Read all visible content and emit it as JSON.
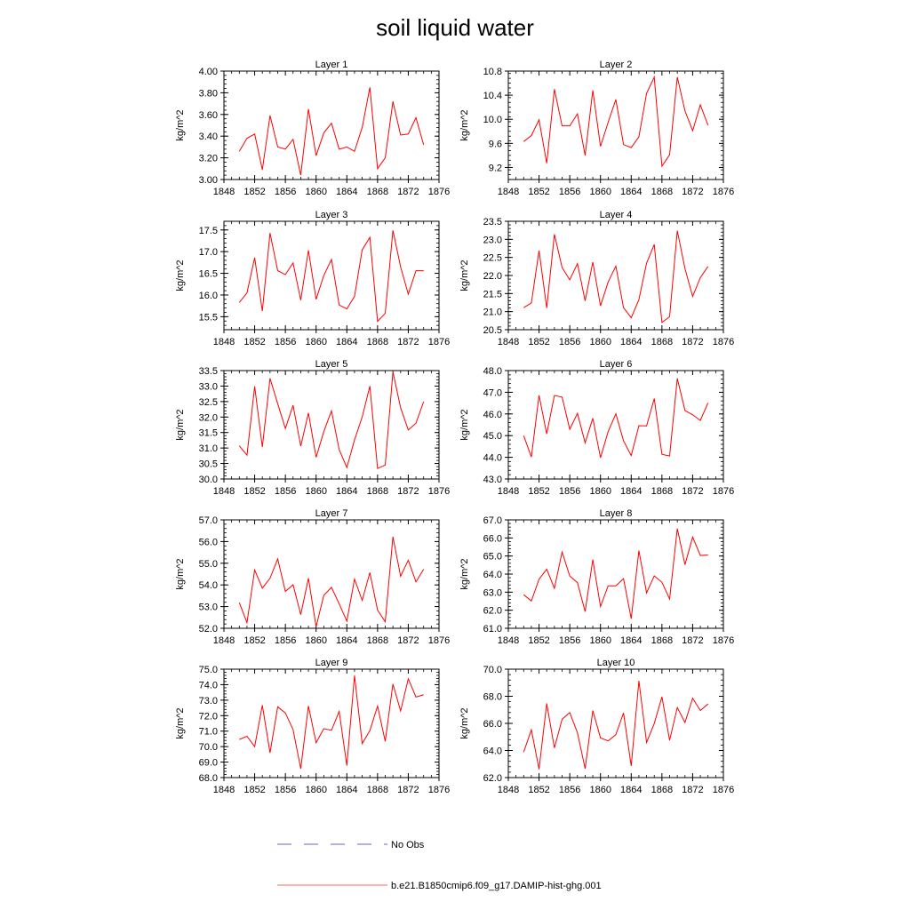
{
  "figure": {
    "title": "soil liquid water"
  },
  "legend": [
    {
      "label": "No Obs",
      "color": "#6666cc",
      "dash": true
    },
    {
      "label": "b.e21.B1850cmip6.f09_g17.DAMIP-hist-ghg.001",
      "color": "#ff0000",
      "dash": false
    }
  ],
  "chart_data": [
    {
      "type": "line",
      "title": "Layer 1",
      "xlabel": "",
      "ylabel": "kg/m^2",
      "xlim": [
        1848,
        1876
      ],
      "ylim": [
        3.0,
        4.0
      ],
      "xticks": [
        "1848",
        "1852",
        "1856",
        "1860",
        "1864",
        "1868",
        "1872",
        "1876"
      ],
      "yticks": [
        "3.00",
        "3.20",
        "3.40",
        "3.60",
        "3.80",
        "4.00"
      ],
      "series": [
        {
          "color": "#ff0000",
          "x": [
            1850,
            1851,
            1852,
            1853,
            1854,
            1855,
            1856,
            1857,
            1858,
            1859,
            1860,
            1861,
            1862,
            1863,
            1864,
            1865,
            1866,
            1867,
            1868,
            1869,
            1870,
            1871,
            1872,
            1873,
            1874
          ],
          "values": [
            3.26,
            3.38,
            3.42,
            3.09,
            3.59,
            3.3,
            3.28,
            3.37,
            3.04,
            3.65,
            3.22,
            3.43,
            3.52,
            3.28,
            3.3,
            3.26,
            3.48,
            3.85,
            3.1,
            3.2,
            3.72,
            3.41,
            3.42,
            3.57,
            3.32
          ]
        }
      ]
    },
    {
      "type": "line",
      "title": "Layer 2",
      "xlabel": "",
      "ylabel": "kg/m^2",
      "xlim": [
        1848,
        1876
      ],
      "ylim": [
        9.0,
        10.8
      ],
      "xticks": [
        "1848",
        "1852",
        "1856",
        "1860",
        "1864",
        "1868",
        "1872",
        "1876"
      ],
      "yticks": [
        "9.2",
        "9.6",
        "10.0",
        "10.4",
        "10.8"
      ],
      "series": [
        {
          "color": "#ff0000",
          "x": [
            1850,
            1851,
            1852,
            1853,
            1854,
            1855,
            1856,
            1857,
            1858,
            1859,
            1860,
            1861,
            1862,
            1863,
            1864,
            1865,
            1866,
            1867,
            1868,
            1869,
            1870,
            1871,
            1872,
            1873,
            1874
          ],
          "values": [
            9.63,
            9.73,
            9.99,
            9.27,
            10.5,
            9.89,
            9.89,
            10.09,
            9.4,
            10.48,
            9.55,
            9.95,
            10.33,
            9.58,
            9.53,
            9.71,
            10.43,
            10.7,
            9.22,
            9.41,
            10.7,
            10.14,
            9.81,
            10.24,
            9.9
          ]
        }
      ]
    },
    {
      "type": "line",
      "title": "Layer 3",
      "xlabel": "",
      "ylabel": "kg/m^2",
      "xlim": [
        1848,
        1876
      ],
      "ylim": [
        15.2,
        17.7
      ],
      "xticks": [
        "1848",
        "1852",
        "1856",
        "1860",
        "1864",
        "1868",
        "1872",
        "1876"
      ],
      "yticks": [
        "15.5",
        "16.0",
        "16.5",
        "17.0",
        "17.5"
      ],
      "series": [
        {
          "color": "#ff0000",
          "x": [
            1850,
            1851,
            1852,
            1853,
            1854,
            1855,
            1856,
            1857,
            1858,
            1859,
            1860,
            1861,
            1862,
            1863,
            1864,
            1865,
            1866,
            1867,
            1868,
            1869,
            1870,
            1871,
            1872,
            1873,
            1874
          ],
          "values": [
            15.83,
            16.05,
            16.86,
            15.63,
            17.43,
            16.56,
            16.47,
            16.74,
            15.88,
            17.03,
            15.9,
            16.45,
            16.82,
            15.77,
            15.68,
            15.97,
            17.04,
            17.33,
            15.39,
            15.58,
            17.49,
            16.65,
            16.02,
            16.56,
            16.56
          ]
        }
      ]
    },
    {
      "type": "line",
      "title": "Layer 4",
      "xlabel": "",
      "ylabel": "kg/m^2",
      "xlim": [
        1848,
        1876
      ],
      "ylim": [
        20.5,
        23.5
      ],
      "xticks": [
        "1848",
        "1852",
        "1856",
        "1860",
        "1864",
        "1868",
        "1872",
        "1876"
      ],
      "yticks": [
        "20.5",
        "21.0",
        "21.5",
        "22.0",
        "22.5",
        "23.0",
        "23.5"
      ],
      "series": [
        {
          "color": "#ff0000",
          "x": [
            1850,
            1851,
            1852,
            1853,
            1854,
            1855,
            1856,
            1857,
            1858,
            1859,
            1860,
            1861,
            1862,
            1863,
            1864,
            1865,
            1866,
            1867,
            1868,
            1869,
            1870,
            1871,
            1872,
            1873,
            1874
          ],
          "values": [
            21.11,
            21.24,
            22.69,
            21.1,
            23.14,
            22.22,
            21.88,
            22.33,
            21.3,
            22.37,
            21.16,
            21.82,
            22.26,
            21.11,
            20.83,
            21.33,
            22.34,
            22.86,
            20.7,
            20.86,
            23.24,
            22.19,
            21.42,
            21.94,
            22.25
          ]
        }
      ]
    },
    {
      "type": "line",
      "title": "Layer 5",
      "xlabel": "",
      "ylabel": "kg/m^2",
      "xlim": [
        1848,
        1876
      ],
      "ylim": [
        30.0,
        33.5
      ],
      "xticks": [
        "1848",
        "1852",
        "1856",
        "1860",
        "1864",
        "1868",
        "1872",
        "1876"
      ],
      "yticks": [
        "30.0",
        "30.5",
        "31.0",
        "31.5",
        "32.0",
        "32.5",
        "33.0",
        "33.5"
      ],
      "series": [
        {
          "color": "#ff0000",
          "x": [
            1850,
            1851,
            1852,
            1853,
            1854,
            1855,
            1856,
            1857,
            1858,
            1859,
            1860,
            1861,
            1862,
            1863,
            1864,
            1865,
            1866,
            1867,
            1868,
            1869,
            1870,
            1871,
            1872,
            1873,
            1874
          ],
          "values": [
            31.07,
            30.77,
            32.99,
            31.03,
            33.25,
            32.43,
            31.63,
            32.38,
            31.06,
            32.13,
            30.7,
            31.53,
            32.2,
            30.95,
            30.37,
            31.26,
            32.0,
            33.0,
            30.34,
            30.45,
            33.46,
            32.3,
            31.58,
            31.8,
            32.5
          ]
        }
      ]
    },
    {
      "type": "line",
      "title": "Layer 6",
      "xlabel": "",
      "ylabel": "kg/m^2",
      "xlim": [
        1848,
        1876
      ],
      "ylim": [
        43.0,
        48.0
      ],
      "xticks": [
        "1848",
        "1852",
        "1856",
        "1860",
        "1864",
        "1868",
        "1872",
        "1876"
      ],
      "yticks": [
        "43.0",
        "44.0",
        "45.0",
        "46.0",
        "47.0",
        "48.0"
      ],
      "series": [
        {
          "color": "#ff0000",
          "x": [
            1850,
            1851,
            1852,
            1853,
            1854,
            1855,
            1856,
            1857,
            1858,
            1859,
            1860,
            1861,
            1862,
            1863,
            1864,
            1865,
            1866,
            1867,
            1868,
            1869,
            1870,
            1871,
            1872,
            1873,
            1874
          ],
          "values": [
            45.0,
            44.01,
            46.86,
            45.08,
            46.85,
            46.78,
            45.29,
            46.03,
            44.67,
            45.8,
            43.98,
            45.19,
            46.01,
            44.76,
            44.08,
            45.46,
            45.45,
            46.71,
            44.14,
            44.06,
            47.64,
            46.16,
            45.96,
            45.7,
            46.51
          ]
        }
      ]
    },
    {
      "type": "line",
      "title": "Layer 7",
      "xlabel": "",
      "ylabel": "kg/m^2",
      "xlim": [
        1848,
        1876
      ],
      "ylim": [
        52.0,
        57.0
      ],
      "xticks": [
        "1848",
        "1852",
        "1856",
        "1860",
        "1864",
        "1868",
        "1872",
        "1876"
      ],
      "yticks": [
        "52.0",
        "53.0",
        "54.0",
        "55.0",
        "56.0",
        "57.0"
      ],
      "series": [
        {
          "color": "#ff0000",
          "x": [
            1850,
            1851,
            1852,
            1853,
            1854,
            1855,
            1856,
            1857,
            1858,
            1859,
            1860,
            1861,
            1862,
            1863,
            1864,
            1865,
            1866,
            1867,
            1868,
            1869,
            1870,
            1871,
            1872,
            1873,
            1874
          ],
          "values": [
            53.18,
            52.26,
            54.69,
            53.85,
            54.31,
            55.2,
            53.7,
            54.01,
            52.63,
            54.31,
            52.07,
            53.52,
            53.89,
            53.13,
            52.33,
            54.27,
            53.29,
            54.57,
            52.84,
            52.3,
            56.22,
            54.4,
            55.14,
            54.14,
            54.72
          ]
        }
      ]
    },
    {
      "type": "line",
      "title": "Layer 8",
      "xlabel": "",
      "ylabel": "kg/m^2",
      "xlim": [
        1848,
        1876
      ],
      "ylim": [
        61.0,
        67.0
      ],
      "xticks": [
        "1848",
        "1852",
        "1856",
        "1860",
        "1864",
        "1868",
        "1872",
        "1876"
      ],
      "yticks": [
        "61.0",
        "62.0",
        "63.0",
        "64.0",
        "65.0",
        "66.0",
        "67.0"
      ],
      "series": [
        {
          "color": "#ff0000",
          "x": [
            1850,
            1851,
            1852,
            1853,
            1854,
            1855,
            1856,
            1857,
            1858,
            1859,
            1860,
            1861,
            1862,
            1863,
            1864,
            1865,
            1866,
            1867,
            1868,
            1869,
            1870,
            1871,
            1872,
            1873,
            1874
          ],
          "values": [
            62.86,
            62.51,
            63.72,
            64.27,
            63.21,
            65.22,
            63.89,
            63.53,
            61.92,
            64.8,
            62.21,
            63.35,
            63.35,
            63.75,
            61.53,
            65.3,
            62.96,
            63.9,
            63.55,
            62.62,
            66.52,
            64.52,
            66.05,
            65.03,
            65.06
          ]
        }
      ]
    },
    {
      "type": "line",
      "title": "Layer 9",
      "xlabel": "",
      "ylabel": "kg/m^2",
      "xlim": [
        1848,
        1876
      ],
      "ylim": [
        68.0,
        75.0
      ],
      "xticks": [
        "1848",
        "1852",
        "1856",
        "1860",
        "1864",
        "1868",
        "1872",
        "1876"
      ],
      "yticks": [
        "68.0",
        "69.0",
        "70.0",
        "71.0",
        "72.0",
        "73.0",
        "74.0",
        "75.0"
      ],
      "series": [
        {
          "color": "#ff0000",
          "x": [
            1850,
            1851,
            1852,
            1853,
            1854,
            1855,
            1856,
            1857,
            1858,
            1859,
            1860,
            1861,
            1862,
            1863,
            1864,
            1865,
            1866,
            1867,
            1868,
            1869,
            1870,
            1871,
            1872,
            1873,
            1874
          ],
          "values": [
            70.46,
            70.67,
            70.0,
            72.67,
            69.6,
            72.57,
            72.17,
            71.1,
            68.57,
            72.63,
            70.25,
            71.16,
            71.05,
            72.27,
            68.78,
            74.59,
            70.2,
            71.03,
            72.62,
            70.34,
            74.04,
            72.3,
            74.38,
            73.2,
            73.35
          ]
        }
      ]
    },
    {
      "type": "line",
      "title": "Layer 10",
      "xlabel": "",
      "ylabel": "kg/m^2",
      "xlim": [
        1848,
        1876
      ],
      "ylim": [
        62.0,
        70.0
      ],
      "xticks": [
        "1848",
        "1852",
        "1856",
        "1860",
        "1864",
        "1868",
        "1872",
        "1876"
      ],
      "yticks": [
        "62.0",
        "64.0",
        "66.0",
        "68.0",
        "70.0"
      ],
      "series": [
        {
          "color": "#ff0000",
          "x": [
            1850,
            1851,
            1852,
            1853,
            1854,
            1855,
            1856,
            1857,
            1858,
            1859,
            1860,
            1861,
            1862,
            1863,
            1864,
            1865,
            1866,
            1867,
            1868,
            1869,
            1870,
            1871,
            1872,
            1873,
            1874
          ],
          "values": [
            63.88,
            65.53,
            62.62,
            67.47,
            64.19,
            66.3,
            66.8,
            65.31,
            62.66,
            66.95,
            64.93,
            64.71,
            65.17,
            66.77,
            62.86,
            69.14,
            64.59,
            65.99,
            67.96,
            64.75,
            67.17,
            66.06,
            67.86,
            66.95,
            67.43
          ]
        }
      ]
    }
  ]
}
